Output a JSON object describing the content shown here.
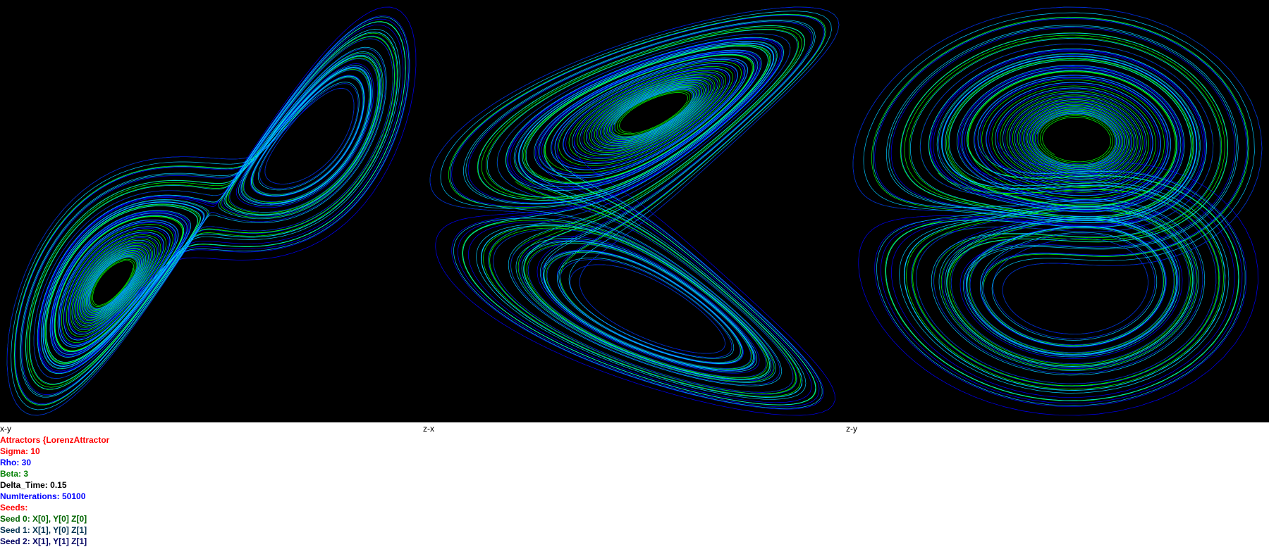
{
  "panels": [
    {
      "label": "x-y"
    },
    {
      "label": "z-x"
    },
    {
      "label": "z-y"
    }
  ],
  "info": {
    "title": "Attractors {LorenzAttractor",
    "sigma": "Sigma: 10",
    "rho": "Rho: 30",
    "beta": "Beta: 3",
    "delta_time": "Delta_Time: 0.15",
    "num_iterations": "NumIterations: 50100",
    "seeds_label": "Seeds:",
    "seeds": [
      "Seed 0: X[0], Y[0] Z[0]",
      "Seed 1: X[1], Y[0] Z[1]",
      "Seed 2: X[1], Y[1] Z[1]"
    ]
  },
  "colors": {
    "background": "#000000",
    "trace_green": "#00ff00",
    "trace_blue": "#0000ff",
    "trace_cyan": "#00c8ff",
    "title": "#ff0000",
    "sigma": "#ff0000",
    "rho": "#0000ff",
    "beta": "#008000",
    "delta_time": "#000000",
    "num_iterations": "#0000ff",
    "seeds_label": "#ff0000",
    "seed0": "#006400",
    "seed1": "#003050",
    "seed2": "#000060"
  },
  "attractor": {
    "sigma": 10,
    "rho": 30,
    "beta": 3
  }
}
